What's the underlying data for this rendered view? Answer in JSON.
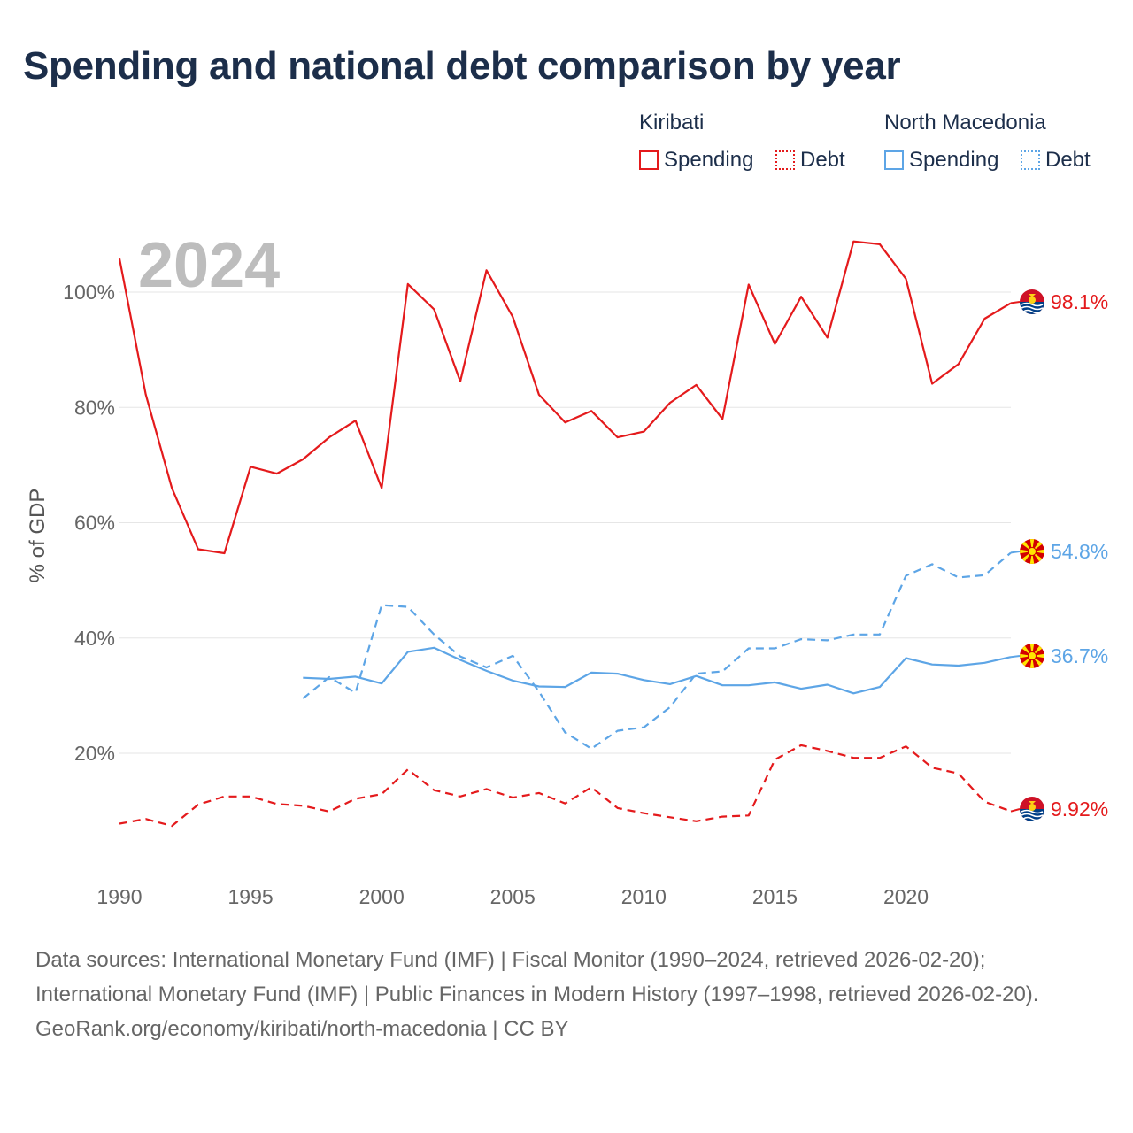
{
  "title": "Spending and national debt comparison by year",
  "legend": {
    "groups": [
      {
        "country": "Kiribati",
        "items": [
          {
            "label": "Spending",
            "style": "solid"
          },
          {
            "label": "Debt",
            "style": "dotted"
          }
        ],
        "color": "#e41a1c"
      },
      {
        "country": "North Macedonia",
        "items": [
          {
            "label": "Spending",
            "style": "solid"
          },
          {
            "label": "Debt",
            "style": "dotted"
          }
        ],
        "color": "#5da5e6"
      }
    ]
  },
  "year_watermark": "2024",
  "chart_data": {
    "type": "line",
    "title": "Spending and national debt comparison by year",
    "xlabel": "",
    "ylabel": "% of GDP",
    "xlim": [
      1990,
      2024
    ],
    "ylim": [
      0,
      112
    ],
    "x_ticks": [
      1990,
      1995,
      2000,
      2005,
      2010,
      2015,
      2020
    ],
    "x_tick_labels": [
      "1990",
      "1995",
      "2000",
      "2005",
      "2010",
      "2015",
      "2020"
    ],
    "y_ticks": [
      20,
      40,
      60,
      80,
      100
    ],
    "y_tick_labels": [
      "20%",
      "40%",
      "60%",
      "80%",
      "100%"
    ],
    "grid": true,
    "series": [
      {
        "name": "Kiribati Spending",
        "country": "Kiribati",
        "kind": "spending",
        "dash": "solid",
        "color": "#e41a1c",
        "x": [
          1990,
          1991,
          1992,
          1993,
          1994,
          1995,
          1996,
          1997,
          1998,
          1999,
          2000,
          2001,
          2002,
          2003,
          2004,
          2005,
          2006,
          2007,
          2008,
          2009,
          2010,
          2011,
          2012,
          2013,
          2014,
          2015,
          2016,
          2017,
          2018,
          2019,
          2020,
          2021,
          2022,
          2023,
          2024
        ],
        "y": [
          105.8,
          82.3,
          66,
          55.4,
          54.7,
          69.7,
          68.5,
          71,
          74.8,
          77.7,
          66,
          101.4,
          97,
          84.5,
          103.8,
          95.7,
          82.2,
          77.4,
          79.4,
          74.8,
          75.8,
          80.8,
          83.9,
          78,
          101.3,
          91,
          99.2,
          92.1,
          108.8,
          108.3,
          102.3,
          84.1,
          87.5,
          95.4,
          98.1
        ],
        "end_label": "98.1%"
      },
      {
        "name": "Kiribati Debt",
        "country": "Kiribati",
        "kind": "debt",
        "dash": "dashed",
        "color": "#e41a1c",
        "x": [
          1990,
          1991,
          1992,
          1993,
          1994,
          1995,
          1996,
          1997,
          1998,
          1999,
          2000,
          2001,
          2002,
          2003,
          2004,
          2005,
          2006,
          2007,
          2008,
          2009,
          2010,
          2011,
          2012,
          2013,
          2014,
          2015,
          2016,
          2017,
          2018,
          2019,
          2020,
          2021,
          2022,
          2023,
          2024
        ],
        "y": [
          7.8,
          8.6,
          7.4,
          11.1,
          12.5,
          12.5,
          11.2,
          10.9,
          9.9,
          12.1,
          12.9,
          17.2,
          13.6,
          12.5,
          13.8,
          12.3,
          13.1,
          11.3,
          14.1,
          10.5,
          9.6,
          8.9,
          8.2,
          9,
          9.2,
          18.9,
          21.4,
          20.4,
          19.2,
          19.2,
          21.2,
          17.5,
          16.5,
          11.6,
          9.92
        ],
        "end_label": "9.92%"
      },
      {
        "name": "North Macedonia Spending",
        "country": "North Macedonia",
        "kind": "spending",
        "dash": "solid",
        "color": "#5da5e6",
        "x": [
          1997,
          1998,
          1999,
          2000,
          2001,
          2002,
          2003,
          2004,
          2005,
          2006,
          2007,
          2008,
          2009,
          2010,
          2011,
          2012,
          2013,
          2014,
          2015,
          2016,
          2017,
          2018,
          2019,
          2020,
          2021,
          2022,
          2023,
          2024
        ],
        "y": [
          33.1,
          32.9,
          33.3,
          32.1,
          37.6,
          38.3,
          36.2,
          34.3,
          32.6,
          31.6,
          31.5,
          34,
          33.8,
          32.7,
          32,
          33.4,
          31.8,
          31.8,
          32.3,
          31.2,
          31.9,
          30.4,
          31.5,
          36.5,
          35.4,
          35.2,
          35.7,
          36.7
        ],
        "end_label": "36.7%"
      },
      {
        "name": "North Macedonia Debt",
        "country": "North Macedonia",
        "kind": "debt",
        "dash": "dashed",
        "color": "#5da5e6",
        "x": [
          1997,
          1998,
          1999,
          2000,
          2001,
          2002,
          2003,
          2004,
          2005,
          2006,
          2007,
          2008,
          2009,
          2010,
          2011,
          2012,
          2013,
          2014,
          2015,
          2016,
          2017,
          2018,
          2019,
          2020,
          2021,
          2022,
          2023,
          2024
        ],
        "y": [
          29.5,
          33.2,
          30.5,
          45.7,
          45.4,
          40.6,
          36.8,
          34.9,
          36.9,
          30.7,
          23.6,
          20.8,
          23.9,
          24.5,
          28,
          33.8,
          34.2,
          38.2,
          38.2,
          39.8,
          39.6,
          40.6,
          40.6,
          50.8,
          52.8,
          50.5,
          50.9,
          54.8
        ],
        "end_label": "54.8%"
      }
    ]
  },
  "footer": {
    "sources": "Data sources: International Monetary Fund (IMF) | Fiscal Monitor (1990–2024, retrieved 2026-02-20); International Monetary Fund (IMF) | Public Finances in Modern History (1997–1998, retrieved 2026-02-20).",
    "credit": "GeoRank.org/economy/kiribati/north-macedonia | CC BY"
  }
}
